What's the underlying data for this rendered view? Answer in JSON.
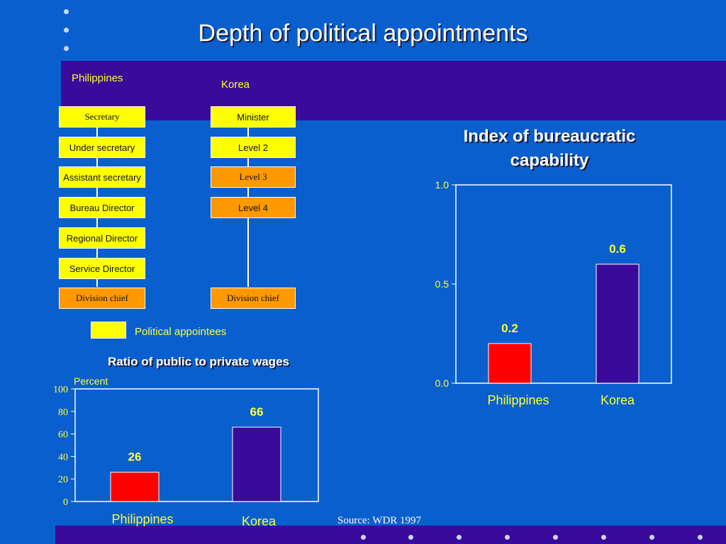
{
  "slide": {
    "title": "Depth of political appointments",
    "source": "Source:  WDR 1997"
  },
  "hierarchy": {
    "philippines_label": "Philippines",
    "korea_label": "Korea",
    "philippines": [
      {
        "label": "Secretary",
        "style": "yellow-serif"
      },
      {
        "label": "Under secretary",
        "style": "yellow"
      },
      {
        "label": "Assistant secretary",
        "style": "yellow"
      },
      {
        "label": "Bureau Director",
        "style": "yellow"
      },
      {
        "label": "Regional Director",
        "style": "yellow"
      },
      {
        "label": "Service Director",
        "style": "yellow"
      },
      {
        "label": "Division chief",
        "style": "orange-serif"
      }
    ],
    "korea": [
      {
        "label": "Minister",
        "style": "yellow"
      },
      {
        "label": "Level 2",
        "style": "yellow"
      },
      {
        "label": "Level 3",
        "style": "orange-serif"
      },
      {
        "label": "Level 4",
        "style": "orange"
      },
      {
        "label": "Division chief",
        "style": "orange-serif"
      }
    ],
    "legend_label": "Political appointees",
    "colors": {
      "appointee": "#ffff00",
      "career": "#ff9900"
    }
  },
  "chart_data": [
    {
      "type": "bar",
      "title": "Index of bureaucratic capability",
      "categories": [
        "Philippines",
        "Korea"
      ],
      "values": [
        0.2,
        0.6
      ],
      "value_labels": [
        "0.2",
        "0.6"
      ],
      "yticks": [
        "0.0",
        "0.5",
        "1.0"
      ],
      "ylim": [
        0,
        1
      ],
      "colors": [
        "#ff0000",
        "#3a0a9a"
      ]
    },
    {
      "type": "bar",
      "title": "Ratio of public to private wages",
      "ylabel": "Percent",
      "categories": [
        "Philippines",
        "Korea"
      ],
      "values": [
        26,
        66
      ],
      "value_labels": [
        "26",
        "66"
      ],
      "yticks": [
        "0",
        "20",
        "40",
        "60",
        "80",
        "100"
      ],
      "ylim": [
        0,
        100
      ],
      "colors": [
        "#ff0000",
        "#3a0a9a"
      ]
    }
  ]
}
